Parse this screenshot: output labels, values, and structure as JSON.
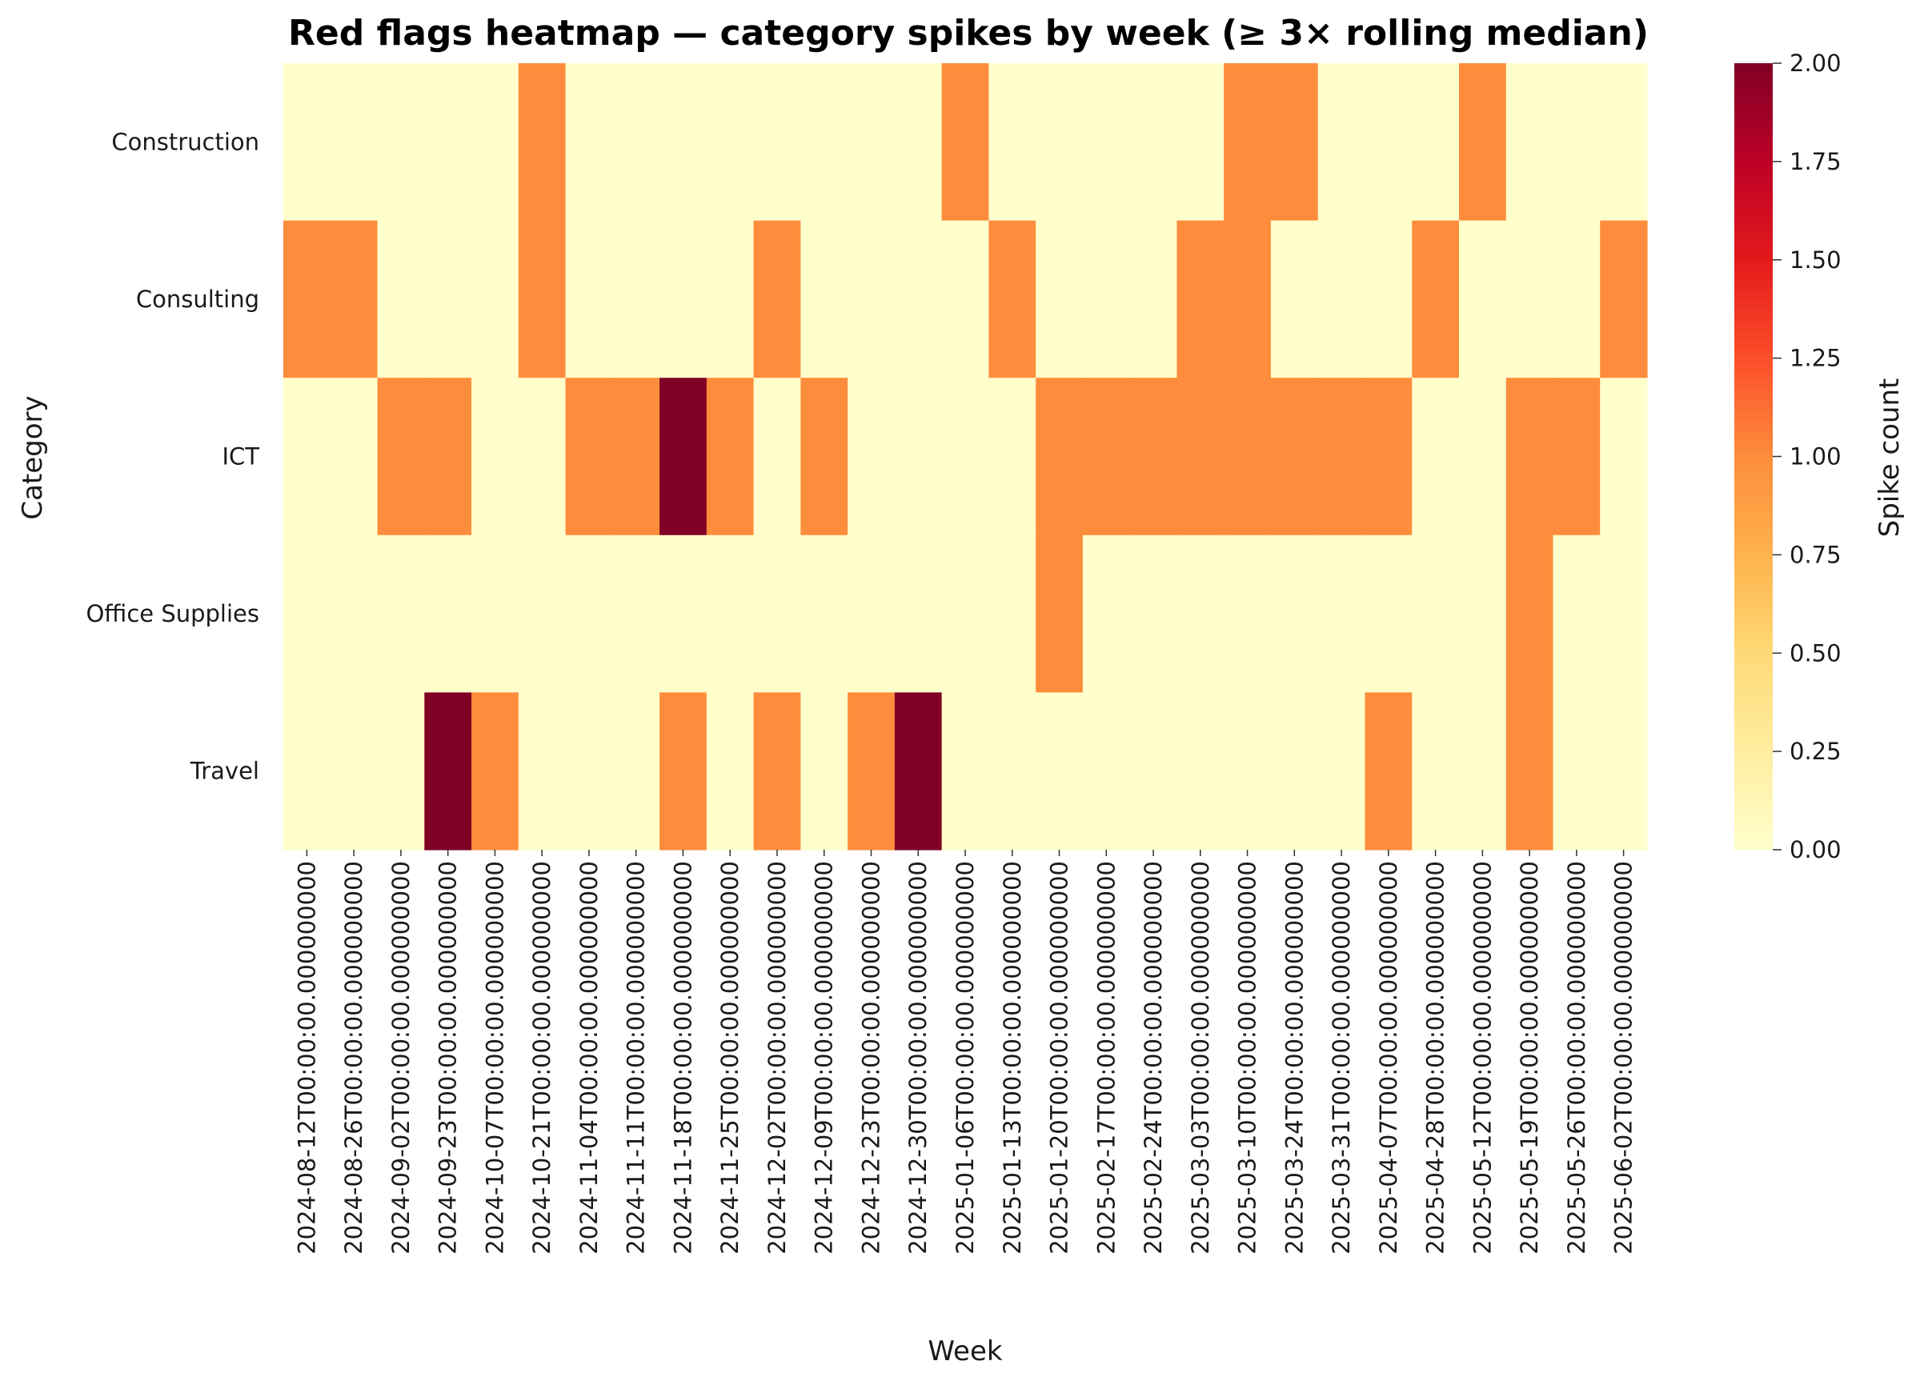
{
  "chart_data": {
    "type": "heatmap",
    "title": "Red flags heatmap — category spikes by week (≥ 3× rolling median)",
    "xlabel": "Week",
    "ylabel": "Category",
    "colorbar_label": "Spike count",
    "colormap": "YlOrRd",
    "color_range": [
      0,
      2
    ],
    "colorbar_ticks": [
      "0.00",
      "0.25",
      "0.50",
      "0.75",
      "1.00",
      "1.25",
      "1.50",
      "1.75",
      "2.00"
    ],
    "colors": {
      "zero": "#ffffcc",
      "one": "#fd8d3c",
      "two": "#800026"
    },
    "x": [
      "2024-08-12T00:00:00.000000000",
      "2024-08-26T00:00:00.000000000",
      "2024-09-02T00:00:00.000000000",
      "2024-09-23T00:00:00.000000000",
      "2024-10-07T00:00:00.000000000",
      "2024-10-21T00:00:00.000000000",
      "2024-11-04T00:00:00.000000000",
      "2024-11-11T00:00:00.000000000",
      "2024-11-18T00:00:00.000000000",
      "2024-11-25T00:00:00.000000000",
      "2024-12-02T00:00:00.000000000",
      "2024-12-09T00:00:00.000000000",
      "2024-12-23T00:00:00.000000000",
      "2024-12-30T00:00:00.000000000",
      "2025-01-06T00:00:00.000000000",
      "2025-01-13T00:00:00.000000000",
      "2025-01-20T00:00:00.000000000",
      "2025-02-17T00:00:00.000000000",
      "2025-02-24T00:00:00.000000000",
      "2025-03-03T00:00:00.000000000",
      "2025-03-10T00:00:00.000000000",
      "2025-03-24T00:00:00.000000000",
      "2025-03-31T00:00:00.000000000",
      "2025-04-07T00:00:00.000000000",
      "2025-04-28T00:00:00.000000000",
      "2025-05-12T00:00:00.000000000",
      "2025-05-19T00:00:00.000000000",
      "2025-05-26T00:00:00.000000000",
      "2025-06-02T00:00:00.000000000"
    ],
    "y": [
      "Construction",
      "Consulting",
      "ICT",
      "Office Supplies",
      "Travel"
    ],
    "values": [
      [
        0,
        0,
        0,
        0,
        0,
        1,
        0,
        0,
        0,
        0,
        0,
        0,
        0,
        0,
        1,
        0,
        0,
        0,
        0,
        0,
        1,
        1,
        0,
        0,
        0,
        1,
        0,
        0,
        0
      ],
      [
        1,
        1,
        0,
        0,
        0,
        1,
        0,
        0,
        0,
        0,
        1,
        0,
        0,
        0,
        0,
        1,
        0,
        0,
        0,
        1,
        1,
        0,
        0,
        0,
        1,
        0,
        0,
        0,
        1
      ],
      [
        0,
        0,
        1,
        1,
        0,
        0,
        1,
        1,
        2,
        1,
        0,
        1,
        0,
        0,
        0,
        0,
        1,
        1,
        1,
        1,
        1,
        1,
        1,
        1,
        0,
        0,
        1,
        1,
        0
      ],
      [
        0,
        0,
        0,
        0,
        0,
        0,
        0,
        0,
        0,
        0,
        0,
        0,
        0,
        0,
        0,
        0,
        1,
        0,
        0,
        0,
        0,
        0,
        0,
        0,
        0,
        0,
        1,
        0,
        0
      ],
      [
        0,
        0,
        0,
        2,
        1,
        0,
        0,
        0,
        1,
        0,
        1,
        0,
        1,
        2,
        0,
        0,
        0,
        0,
        0,
        0,
        0,
        0,
        0,
        1,
        0,
        0,
        1,
        0,
        0
      ]
    ]
  }
}
